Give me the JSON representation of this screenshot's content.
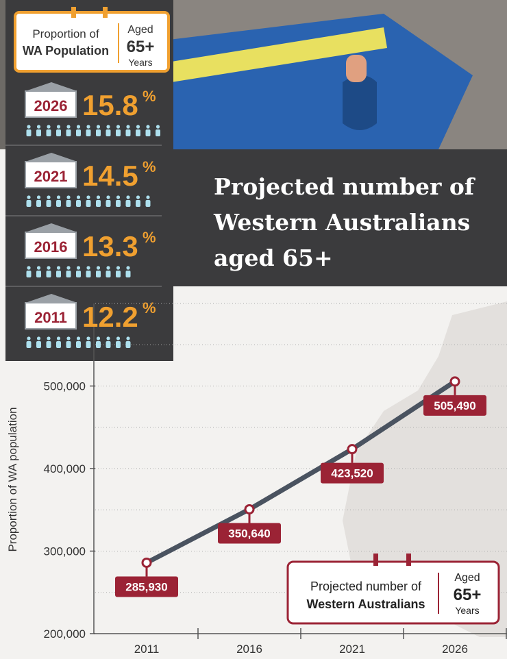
{
  "chart_data": {
    "type": "line",
    "title": [
      "Projected number of",
      "Western Australians",
      "aged 65+"
    ],
    "y_label": "Proportion of WA population",
    "categories": [
      "2011",
      "2016",
      "2021",
      "2026"
    ],
    "series": [
      {
        "color": "#4a5360",
        "marker_color": "#9b2335",
        "values": [
          285930,
          350640,
          423520,
          505490
        ],
        "value_labels": [
          "285,930",
          "350,640",
          "423,520",
          "505,490"
        ]
      }
    ],
    "ylim": [
      200000,
      600000
    ],
    "yticks": [
      {
        "value": 200000,
        "label": "200,000"
      },
      {
        "value": 300000,
        "label": "300,000"
      },
      {
        "value": 400000,
        "label": "400,000"
      },
      {
        "value": 500000,
        "label": "500,000"
      }
    ],
    "grid_values": [
      250000,
      350000,
      450000,
      550000,
      600000
    ],
    "grid": true,
    "legend": {
      "lines": [
        "Projected number of",
        "Western Australians"
      ],
      "aged": "Aged",
      "age": "65+",
      "years": "Years"
    }
  },
  "proportion_panel": {
    "heading": [
      "Proportion of",
      "WA Population"
    ],
    "aged": "Aged",
    "age": "65+",
    "years": "Years",
    "color": "#f0a030",
    "rows": [
      {
        "year": "2026",
        "value": 15.8,
        "unit": "%"
      },
      {
        "year": "2021",
        "value": 14.5,
        "unit": "%"
      },
      {
        "year": "2016",
        "value": 13.3,
        "unit": "%"
      },
      {
        "year": "2011",
        "value": 12.2,
        "unit": "%"
      }
    ]
  }
}
